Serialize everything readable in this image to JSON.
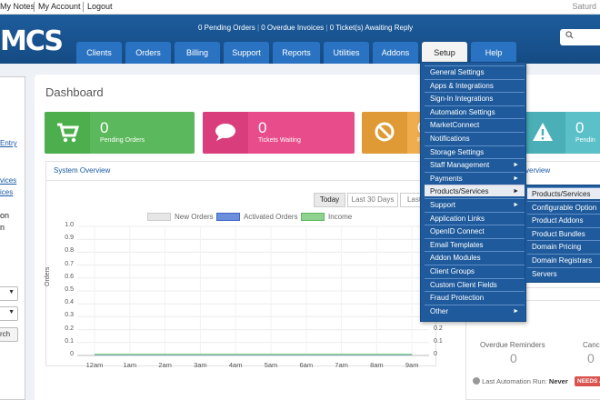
{
  "topbar": {
    "my_notes": "My Notes",
    "my_account": "My Account",
    "logout": "Logout",
    "date": "Saturd"
  },
  "header": {
    "logo": "MCS",
    "pending_orders": "0 Pending Orders",
    "overdue_invoices": "0 Overdue Invoices",
    "tickets": "0 Ticket(s) Awaiting Reply",
    "search_icon": "search-icon"
  },
  "nav": [
    "Clients",
    "Orders",
    "Billing",
    "Support",
    "Reports",
    "Utilities",
    "Addons",
    "Setup",
    "Help"
  ],
  "sidebar": {
    "entry": "Entry",
    "vices": "vices",
    "ices": "ices",
    "on": "on",
    "n": "n",
    "search_btn": "rch"
  },
  "dashboard": {
    "title": "Dashboard",
    "cards": [
      {
        "num": "0",
        "label": "Pending Orders",
        "color": "#5cb85c",
        "icon": "cart-icon"
      },
      {
        "num": "0",
        "label": "Tickets Waiting",
        "color": "#e94c8b",
        "icon": "speech-bubble-icon"
      },
      {
        "num": "0",
        "label": "P",
        "color": "#f0ad4e",
        "icon": "ban-icon"
      },
      {
        "num": "0",
        "label": "Pendin",
        "color": "#5bc0c8",
        "icon": "warning-icon"
      }
    ]
  },
  "system_overview": {
    "title": "System Overview",
    "ranges": [
      "Today",
      "Last 30 Days",
      "Last"
    ],
    "active_range": "Today"
  },
  "chart_data": {
    "type": "line",
    "x": [
      "12am",
      "1am",
      "2am",
      "3am",
      "4am",
      "5am",
      "6am",
      "7am",
      "8am",
      "9am"
    ],
    "series": [
      {
        "name": "New Orders",
        "values": [
          0,
          0,
          0,
          0,
          0,
          0,
          0,
          0,
          0,
          0
        ],
        "color": "#e6e6e6"
      },
      {
        "name": "Activated Orders",
        "values": [
          0,
          0,
          0,
          0,
          0,
          0,
          0,
          0,
          0,
          0
        ],
        "color": "#6c8fdc"
      },
      {
        "name": "Income",
        "values": [
          0,
          0,
          0,
          0,
          0,
          0,
          0,
          0,
          0,
          0
        ],
        "color": "#8fd18f"
      }
    ],
    "ylabel": "Orders",
    "ylim": [
      0,
      1.0
    ],
    "yticks": [
      "1.0",
      "0.9",
      "0.8",
      "0.7",
      "0.6",
      "0.5",
      "0.4",
      "0.3",
      "0.2",
      "0.1",
      "0"
    ],
    "yticks_right": [
      "0.2",
      "0.1",
      "0"
    ],
    "grid": true,
    "legend": "top-center"
  },
  "right_panel": {
    "title_partial": "verview"
  },
  "automation": {
    "overdue_label": "Overdue Reminders",
    "overdue_value": "0",
    "canc_label": "Canc",
    "canc_value": "0",
    "last_run_label": "Last Automation Run:",
    "last_run_value": "Never",
    "needs": "NEEDS A"
  },
  "setup_menu": [
    {
      "label": "General Settings"
    },
    {
      "label": "Apps & Integrations"
    },
    {
      "label": "Sign-In Integrations"
    },
    {
      "label": "Automation Settings"
    },
    {
      "label": "MarketConnect"
    },
    {
      "label": "Notifications"
    },
    {
      "label": "Storage Settings"
    },
    {
      "label": "Staff Management",
      "arrow": "►"
    },
    {
      "label": "Payments",
      "arrow": "►"
    },
    {
      "label": "Products/Services",
      "arrow": "►",
      "highlight": true
    },
    {
      "label": "Support",
      "arrow": "►"
    },
    {
      "label": "Application Links"
    },
    {
      "label": "OpenID Connect"
    },
    {
      "label": "Email Templates"
    },
    {
      "label": "Addon Modules"
    },
    {
      "label": "Client Groups"
    },
    {
      "label": "Custom Client Fields"
    },
    {
      "label": "Fraud Protection"
    },
    {
      "label": "Other",
      "arrow": "►"
    }
  ],
  "sub_menu": [
    {
      "label": "Products/Services",
      "highlight": true
    },
    {
      "label": "Configurable Option"
    },
    {
      "label": "Product Addons"
    },
    {
      "label": "Product Bundles"
    },
    {
      "label": "Domain Pricing"
    },
    {
      "label": "Domain Registrars"
    },
    {
      "label": "Servers"
    }
  ]
}
